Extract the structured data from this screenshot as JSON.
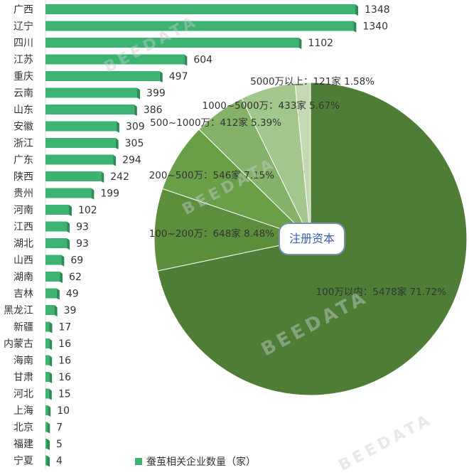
{
  "chart_data": [
    {
      "type": "bar",
      "orientation": "horizontal",
      "categories": [
        "广西",
        "辽宁",
        "四川",
        "江苏",
        "重庆",
        "云南",
        "山东",
        "安徽",
        "浙江",
        "广东",
        "陕西",
        "贵州",
        "河南",
        "江西",
        "湖北",
        "山西",
        "湖南",
        "吉林",
        "黑龙江",
        "新疆",
        "内蒙古",
        "海南",
        "甘肃",
        "河北",
        "上海",
        "北京",
        "福建",
        "宁夏"
      ],
      "series": [
        {
          "name": "蚕茧相关企业数量（家）",
          "values": [
            1348,
            1340,
            1102,
            604,
            497,
            399,
            386,
            309,
            305,
            294,
            242,
            199,
            102,
            93,
            93,
            69,
            62,
            49,
            39,
            17,
            16,
            16,
            16,
            15,
            10,
            7,
            5,
            4
          ]
        }
      ],
      "legend_position": "bottom",
      "color": "#3cb371"
    },
    {
      "type": "pie",
      "center_label": "注册资本",
      "slices": [
        {
          "label": "100万以内：5478家 71.72%",
          "value": 5478,
          "percent": 71.72,
          "color": "#507d35"
        },
        {
          "label": "100~200万：648家 8.48%",
          "value": 648,
          "percent": 8.48,
          "color": "#5d8e3b"
        },
        {
          "label": "200~500万：546家 7.15%",
          "value": 546,
          "percent": 7.15,
          "color": "#6a9e47"
        },
        {
          "label": "500~1000万：412家 5.39%",
          "value": 412,
          "percent": 5.39,
          "color": "#86b168"
        },
        {
          "label": "1000~5000万：433家 5.67%",
          "value": 433,
          "percent": 5.67,
          "color": "#a3c68c"
        },
        {
          "label": "5000万以上：121家 1.58%",
          "value": 121,
          "percent": 1.58,
          "color": "#c2d9b3"
        }
      ]
    }
  ],
  "watermarks": [
    "BEEDATA",
    "BEEDATA",
    "BEEDATA",
    "BEEDATA"
  ]
}
